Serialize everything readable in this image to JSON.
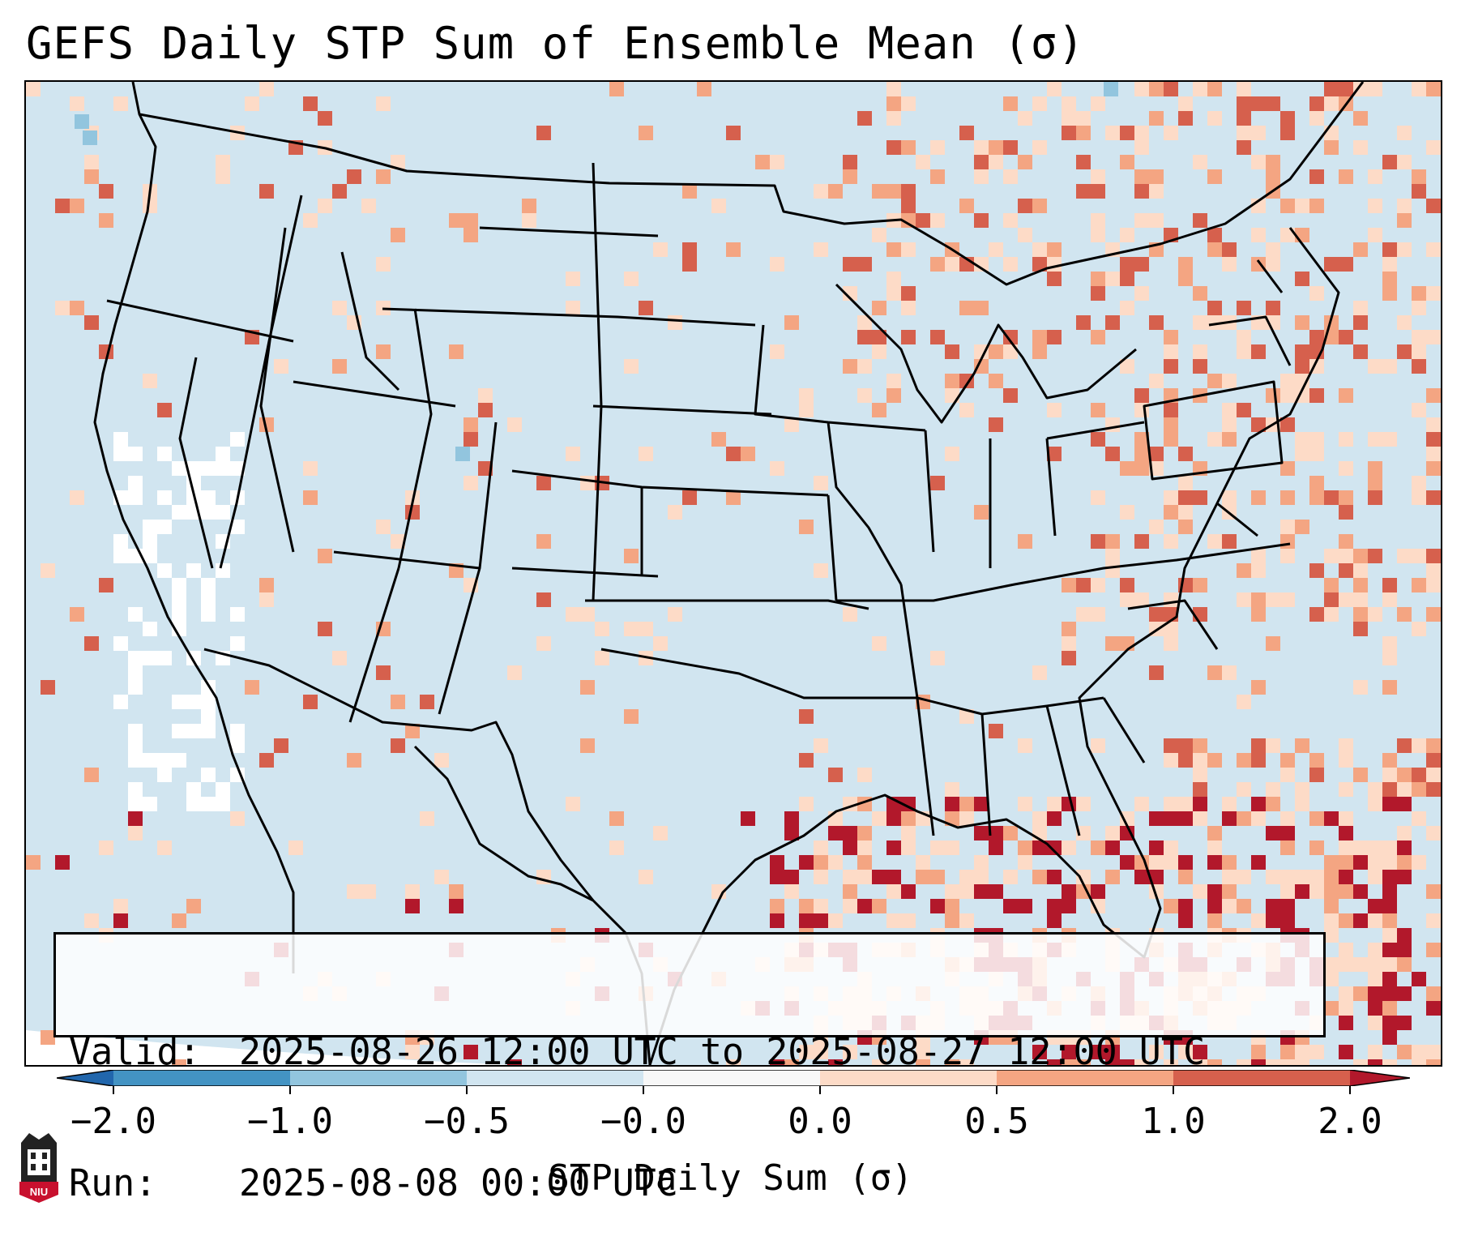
{
  "title": "GEFS Daily STP Sum of Ensemble Mean (σ)",
  "info": {
    "valid_label": "Valid:",
    "valid_value": "2025-08-26 12:00 UTC to 2025-08-27 12:00 UTC",
    "run_label": "Run:",
    "run_value": "2025-08-08 00:00 UTC"
  },
  "colorbar": {
    "label": "STP Daily Sum (σ)",
    "ticks": [
      "−2.0",
      "−1.0",
      "−0.5",
      "−0.0",
      "0.0",
      "0.5",
      "1.0",
      "2.0"
    ],
    "bins": [
      {
        "range": "< -2.0",
        "color": "#2166ac"
      },
      {
        "range": "-2.0 to -1.0",
        "color": "#4393c3"
      },
      {
        "range": "-1.0 to -0.5",
        "color": "#92c5de"
      },
      {
        "range": "-0.5 to -0.0",
        "color": "#d1e5f0"
      },
      {
        "range": "-0.0 to 0.0",
        "color": "#f7f7f7"
      },
      {
        "range": "0.0 to 0.5",
        "color": "#fddbc7"
      },
      {
        "range": "0.5 to 1.0",
        "color": "#f4a582"
      },
      {
        "range": "1.0 to 2.0",
        "color": "#d6604d"
      },
      {
        "range": "> 2.0",
        "color": "#b2182b"
      }
    ]
  },
  "map": {
    "background_color": "#d1e5f0",
    "region": "CONUS",
    "colors": {
      "neutral": "#ffffff",
      "light": "#fddbc7",
      "mid": "#f4a582",
      "high": "#d6604d",
      "extreme": "#b2182b",
      "neg": "#92c5de"
    }
  },
  "logo": {
    "text": "NIU"
  }
}
